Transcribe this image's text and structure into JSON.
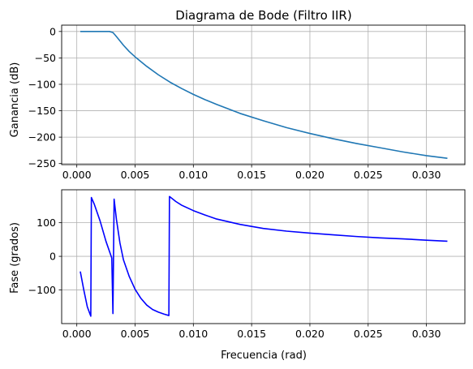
{
  "chart_data": [
    {
      "type": "line",
      "title": "Diagrama de Bode (Filtro IIR)",
      "xlabel": "",
      "ylabel": "Ganancia (dB)",
      "xlim": [
        -0.0013,
        0.0333
      ],
      "ylim": [
        -252,
        12
      ],
      "grid": true,
      "xticks": [
        0.0,
        0.005,
        0.01,
        0.015,
        0.02,
        0.025,
        0.03
      ],
      "xtick_labels": [
        "0.000",
        "0.005",
        "0.010",
        "0.015",
        "0.020",
        "0.025",
        "0.030"
      ],
      "yticks": [
        0,
        -50,
        -100,
        -150,
        -200,
        -250
      ],
      "ytick_labels": [
        "0",
        "−50",
        "−100",
        "−150",
        "−200",
        "−250"
      ],
      "color": "#1f77b4",
      "series": [
        {
          "x": [
            0.0003,
            0.001,
            0.002,
            0.0028,
            0.0031,
            0.0033,
            0.0036,
            0.004,
            0.0045,
            0.005,
            0.006,
            0.007,
            0.008,
            0.009,
            0.01,
            0.011,
            0.012,
            0.014,
            0.016,
            0.018,
            0.02,
            0.022,
            0.024,
            0.026,
            0.028,
            0.03,
            0.0318
          ],
          "y": [
            0,
            0,
            0,
            0,
            -2,
            -7,
            -15,
            -26,
            -38,
            -48,
            -66,
            -82,
            -96,
            -108,
            -119,
            -129,
            -138,
            -155,
            -169,
            -182,
            -193,
            -203,
            -212,
            -220,
            -228,
            -235,
            -240
          ]
        }
      ]
    },
    {
      "type": "line",
      "title": "",
      "xlabel": "Frecuencia (rad)",
      "ylabel": "Fase (grados)",
      "xlim": [
        -0.0013,
        0.0333
      ],
      "ylim": [
        -200,
        198
      ],
      "grid": true,
      "xticks": [
        0.0,
        0.005,
        0.01,
        0.015,
        0.02,
        0.025,
        0.03
      ],
      "xtick_labels": [
        "0.000",
        "0.005",
        "0.010",
        "0.015",
        "0.020",
        "0.025",
        "0.030"
      ],
      "yticks": [
        100,
        0,
        -100
      ],
      "ytick_labels": [
        "100",
        "0",
        "−100"
      ],
      "color": "#0000ff",
      "series": [
        {
          "x": [
            0.0003,
            0.0006,
            0.0009,
            0.0012,
            0.00125,
            0.0015,
            0.002,
            0.0025,
            0.003,
            0.0031,
            0.0032,
            0.0034,
            0.0037,
            0.004,
            0.0045,
            0.005,
            0.0055,
            0.006,
            0.0065,
            0.007,
            0.0075,
            0.0079,
            0.00795,
            0.0085,
            0.009,
            0.01,
            0.011,
            0.012,
            0.014,
            0.016,
            0.018,
            0.02,
            0.022,
            0.024,
            0.026,
            0.028,
            0.03,
            0.0318
          ],
          "y": [
            -45,
            -100,
            -150,
            -178,
            175,
            155,
            105,
            45,
            -5,
            -170,
            170,
            110,
            40,
            -10,
            -60,
            -98,
            -125,
            -145,
            -158,
            -166,
            -172,
            -176,
            178,
            163,
            152,
            136,
            123,
            111,
            95,
            83,
            75,
            69,
            64,
            59,
            55,
            52,
            48,
            45
          ]
        }
      ]
    }
  ]
}
